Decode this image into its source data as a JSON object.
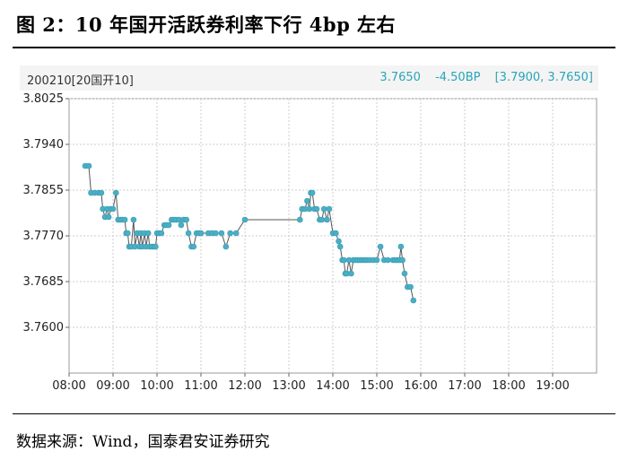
{
  "figure": {
    "title": "图 2：10 年国开活跃券利率下行 4bp 左右",
    "source": "数据来源：Wind，国泰君安证券研究"
  },
  "infobar": {
    "instrument": "200210[20国开10]",
    "last": "3.7650",
    "change": "-4.50BP",
    "range": "[3.7900, 3.7650]"
  },
  "colors": {
    "line": "#555555",
    "marker": "#4aaec4",
    "accent_text": "#27a6b8",
    "grid": "#cccccc"
  },
  "chart_data": {
    "type": "line",
    "title": "",
    "xlabel": "",
    "ylabel": "",
    "grid": true,
    "xlim": [
      "08:00",
      "20:00"
    ],
    "ylim": [
      3.7515,
      3.8025
    ],
    "x_ticks": [
      "08:00",
      "09:00",
      "10:00",
      "11:00",
      "12:00",
      "13:00",
      "14:00",
      "15:00",
      "16:00",
      "17:00",
      "18:00",
      "19:00"
    ],
    "y_ticks": [
      "3.8025",
      "3.7940",
      "3.7855",
      "3.7770",
      "3.7685",
      "3.7600"
    ],
    "series": [
      {
        "x": [
          "08:22",
          "08:27",
          "08:30",
          "08:35",
          "08:40",
          "08:44",
          "08:46",
          "08:49",
          "08:52",
          "08:54",
          "08:57",
          "09:00",
          "09:04",
          "09:07",
          "09:10",
          "09:13",
          "09:16",
          "09:18",
          "09:20",
          "09:22",
          "09:25",
          "09:28",
          "09:30",
          "09:33",
          "09:36",
          "09:38",
          "09:40",
          "09:43",
          "09:45",
          "09:48",
          "09:50",
          "09:53",
          "09:56",
          "09:58",
          "10:00",
          "10:03",
          "10:06",
          "10:10",
          "10:13",
          "10:16",
          "10:20",
          "10:23",
          "10:26",
          "10:30",
          "10:33",
          "10:36",
          "10:40",
          "10:43",
          "10:47",
          "10:50",
          "10:54",
          "10:58",
          "11:00",
          "11:10",
          "11:15",
          "11:20",
          "11:28",
          "11:34",
          "11:40",
          "11:48",
          "12:00",
          "13:15",
          "13:18",
          "13:22",
          "13:25",
          "13:28",
          "13:30",
          "13:32",
          "13:35",
          "13:38",
          "13:42",
          "13:45",
          "13:48",
          "13:52",
          "13:55",
          "14:00",
          "14:04",
          "14:08",
          "14:10",
          "14:13",
          "14:15",
          "14:17",
          "14:19",
          "14:22",
          "14:25",
          "14:28",
          "14:31",
          "14:34",
          "14:37",
          "14:40",
          "14:43",
          "14:46",
          "14:50",
          "14:55",
          "15:00",
          "15:05",
          "15:10",
          "15:15",
          "15:22",
          "15:25",
          "15:28",
          "15:31",
          "15:33",
          "15:35",
          "15:38",
          "15:42",
          "15:46",
          "15:50"
        ],
        "values": [
          3.79,
          3.79,
          3.785,
          3.785,
          3.785,
          3.785,
          3.782,
          3.7805,
          3.782,
          3.7805,
          3.782,
          3.782,
          3.785,
          3.78,
          3.78,
          3.78,
          3.78,
          3.7775,
          3.7775,
          3.775,
          3.775,
          3.78,
          3.775,
          3.7775,
          3.775,
          3.7775,
          3.775,
          3.7775,
          3.775,
          3.7775,
          3.775,
          3.775,
          3.775,
          3.775,
          3.7775,
          3.7775,
          3.7775,
          3.779,
          3.779,
          3.779,
          3.78,
          3.78,
          3.78,
          3.78,
          3.779,
          3.78,
          3.78,
          3.7775,
          3.775,
          3.775,
          3.7775,
          3.7775,
          3.7775,
          3.7775,
          3.7775,
          3.7775,
          3.7775,
          3.775,
          3.7775,
          3.7775,
          3.78,
          3.78,
          3.782,
          3.782,
          3.7835,
          3.782,
          3.785,
          3.785,
          3.782,
          3.782,
          3.78,
          3.78,
          3.782,
          3.78,
          3.782,
          3.7775,
          3.7775,
          3.776,
          3.775,
          3.7725,
          3.7725,
          3.77,
          3.77,
          3.7725,
          3.77,
          3.7725,
          3.7725,
          3.7725,
          3.7725,
          3.7725,
          3.7725,
          3.7725,
          3.7725,
          3.7725,
          3.7725,
          3.775,
          3.7725,
          3.7725,
          3.7725,
          3.7725,
          3.7725,
          3.7725,
          3.775,
          3.7725,
          3.77,
          3.7675,
          3.7675,
          3.765
        ]
      }
    ]
  }
}
